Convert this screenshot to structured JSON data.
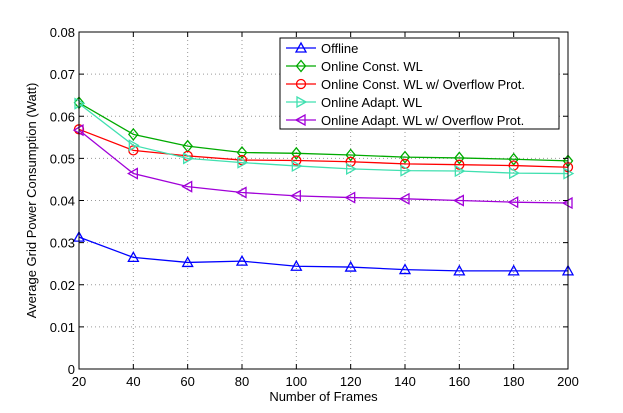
{
  "chart_data": {
    "type": "line",
    "xlabel": "Number of Frames",
    "ylabel": "Average Grid Power Consumption (Watt)",
    "x": [
      20,
      40,
      60,
      80,
      100,
      120,
      140,
      160,
      180,
      200
    ],
    "xlim": [
      20,
      200
    ],
    "ylim": [
      0,
      0.08
    ],
    "xticks": [
      "20",
      "40",
      "60",
      "80",
      "100",
      "120",
      "140",
      "160",
      "180",
      "200"
    ],
    "yticks": [
      "0",
      "0.01",
      "0.02",
      "0.03",
      "0.04",
      "0.05",
      "0.06",
      "0.07",
      "0.08"
    ],
    "grid": true,
    "legend_position": "top-right",
    "series": [
      {
        "name": "Offline",
        "color": "#0000ff",
        "marker": "triangle-up",
        "values": [
          0.0313,
          0.0265,
          0.0253,
          0.0256,
          0.0244,
          0.0242,
          0.0236,
          0.0233,
          0.0233,
          0.0233
        ]
      },
      {
        "name": "Online Const. WL",
        "color": "#00aa00",
        "marker": "diamond",
        "values": [
          0.0632,
          0.0557,
          0.0529,
          0.0514,
          0.0512,
          0.0508,
          0.0503,
          0.0501,
          0.0498,
          0.0494
        ]
      },
      {
        "name": "Online Const. WL w/ Overflow Prot.",
        "color": "#ff0000",
        "marker": "circle",
        "values": [
          0.0569,
          0.0519,
          0.0506,
          0.0496,
          0.0495,
          0.0492,
          0.0487,
          0.0485,
          0.0483,
          0.0479
        ]
      },
      {
        "name": "Online Adapt. WL",
        "color": "#40e0b0",
        "marker": "triangle-right",
        "values": [
          0.063,
          0.0531,
          0.05,
          0.049,
          0.0482,
          0.0475,
          0.0471,
          0.047,
          0.0465,
          0.0464
        ]
      },
      {
        "name": "Online Adapt. WL w/ Overflow Prot.",
        "color": "#a000d8",
        "marker": "triangle-left",
        "values": [
          0.0567,
          0.0464,
          0.0433,
          0.0419,
          0.0411,
          0.0407,
          0.0404,
          0.04,
          0.0396,
          0.0394
        ]
      }
    ]
  }
}
